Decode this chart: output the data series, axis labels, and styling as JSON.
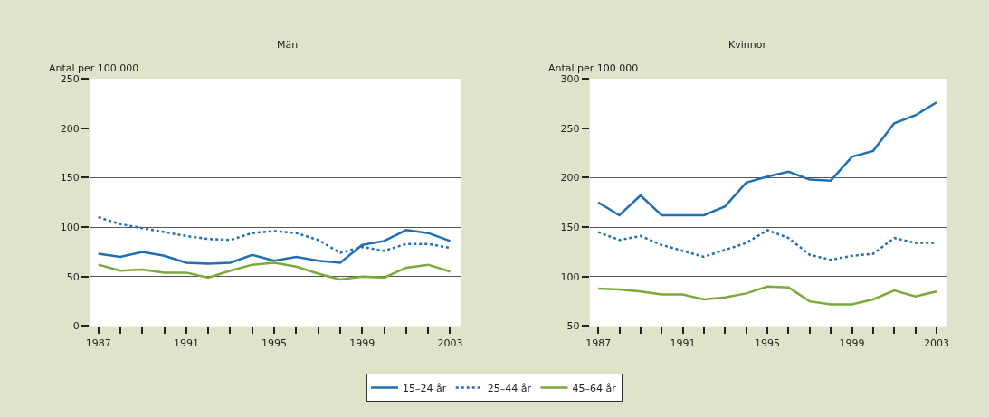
{
  "chart_data": [
    {
      "type": "line",
      "title": "Män",
      "ylabel": "Antal per 100 000",
      "x": [
        1987,
        1988,
        1989,
        1990,
        1991,
        1992,
        1993,
        1994,
        1995,
        1996,
        1997,
        1998,
        1999,
        2000,
        2001,
        2002,
        2003
      ],
      "series": [
        {
          "name": "15–24 år",
          "color": "#1f6fb5",
          "line_style": "solid",
          "values": [
            73,
            70,
            75,
            71,
            64,
            63,
            64,
            72,
            66,
            70,
            66,
            64,
            82,
            86,
            97,
            94,
            86
          ]
        },
        {
          "name": "25–44 år",
          "color": "#1f6fb5",
          "line_style": "dotted",
          "values": [
            110,
            103,
            99,
            95,
            91,
            88,
            87,
            94,
            96,
            94,
            87,
            74,
            80,
            76,
            83,
            83,
            79
          ]
        },
        {
          "name": "45–64 år",
          "color": "#7aab3a",
          "line_style": "solid",
          "values": [
            62,
            56,
            57,
            54,
            54,
            49,
            56,
            62,
            64,
            60,
            53,
            47,
            50,
            49,
            59,
            62,
            55
          ]
        }
      ],
      "xlim": [
        1986.6,
        2003.5
      ],
      "xticks": [
        1987,
        {
          "value": 1988,
          "label": null
        },
        {
          "value": 1989,
          "label": null
        },
        {
          "value": 1990,
          "label": null
        },
        1991,
        {
          "value": 1992,
          "label": null
        },
        {
          "value": 1993,
          "label": null
        },
        {
          "value": 1994,
          "label": null
        },
        1995,
        {
          "value": 1996,
          "label": null
        },
        {
          "value": 1997,
          "label": null
        },
        {
          "value": 1998,
          "label": null
        },
        1999,
        {
          "value": 2000,
          "label": null
        },
        {
          "value": 2001,
          "label": null
        },
        {
          "value": 2002,
          "label": null
        },
        2003
      ],
      "ylim": [
        0,
        250
      ],
      "yticks": [
        0,
        50,
        100,
        150,
        200,
        250
      ],
      "grid": "y",
      "legend": "bottom",
      "marker": "none"
    },
    {
      "type": "line",
      "title": "Kvinnor",
      "ylabel": "Antal per 100 000",
      "x": [
        1987,
        1988,
        1989,
        1990,
        1991,
        1992,
        1993,
        1994,
        1995,
        1996,
        1997,
        1998,
        1999,
        2000,
        2001,
        2002,
        2003
      ],
      "series": [
        {
          "name": "15–24 år",
          "color": "#1f6fb5",
          "line_style": "solid",
          "values": [
            175,
            162,
            182,
            162,
            162,
            162,
            171,
            195,
            201,
            206,
            198,
            197,
            221,
            227,
            255,
            263,
            276
          ]
        },
        {
          "name": "25–44 år",
          "color": "#1f6fb5",
          "line_style": "dotted",
          "values": [
            145,
            137,
            141,
            132,
            126,
            120,
            127,
            134,
            147,
            139,
            122,
            117,
            121,
            123,
            139,
            134,
            134
          ]
        },
        {
          "name": "45–64 år",
          "color": "#7aab3a",
          "line_style": "solid",
          "values": [
            88,
            87,
            85,
            82,
            82,
            77,
            79,
            83,
            90,
            89,
            75,
            72,
            72,
            77,
            86,
            80,
            85
          ]
        }
      ],
      "xlim": [
        1986.6,
        2003.5
      ],
      "xticks": [
        1987,
        {
          "value": 1988,
          "label": null
        },
        {
          "value": 1989,
          "label": null
        },
        {
          "value": 1990,
          "label": null
        },
        1991,
        {
          "value": 1992,
          "label": null
        },
        {
          "value": 1993,
          "label": null
        },
        {
          "value": 1994,
          "label": null
        },
        1995,
        {
          "value": 1996,
          "label": null
        },
        {
          "value": 1997,
          "label": null
        },
        {
          "value": 1998,
          "label": null
        },
        1999,
        {
          "value": 2000,
          "label": null
        },
        {
          "value": 2001,
          "label": null
        },
        {
          "value": 2002,
          "label": null
        },
        2003
      ],
      "ylim": [
        50,
        300
      ],
      "yticks": [
        50,
        100,
        150,
        200,
        250,
        300
      ],
      "grid": "y",
      "legend": "bottom",
      "marker": "none"
    }
  ]
}
